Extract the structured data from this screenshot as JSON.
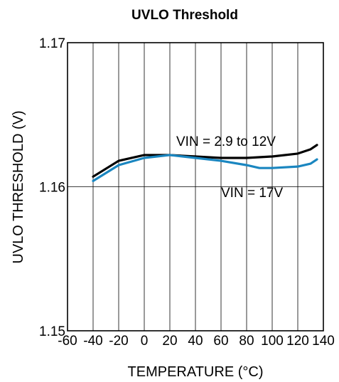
{
  "chart_data": {
    "type": "line",
    "title": "UVLO Threshold",
    "xlabel": "TEMPERATURE (°C)",
    "ylabel": "UVLO THRESHOLD (V)",
    "xlim": [
      -60,
      140
    ],
    "ylim": [
      1.15,
      1.17
    ],
    "x_ticks": [
      -60,
      -40,
      -20,
      0,
      20,
      40,
      60,
      80,
      100,
      120,
      140
    ],
    "x_tick_labels": [
      "-60",
      "-40",
      "-20",
      "0",
      "20",
      "40",
      "60",
      "80",
      "100",
      "120",
      "140"
    ],
    "y_ticks": [
      1.15,
      1.16,
      1.17
    ],
    "y_tick_labels": [
      "1.15",
      "1.16",
      "1.17"
    ],
    "grid": {
      "vertical": true,
      "horizontal_at": [
        1.16
      ]
    },
    "series": [
      {
        "name": "VIN = 2.9 to 12V",
        "color": "#000000",
        "x": [
          -40,
          -20,
          0,
          20,
          40,
          60,
          80,
          100,
          120,
          130,
          135
        ],
        "y": [
          1.1607,
          1.1618,
          1.1622,
          1.1622,
          1.1621,
          1.162,
          1.162,
          1.1621,
          1.1623,
          1.1626,
          1.1629
        ]
      },
      {
        "name": "VIN = 17V",
        "color": "#1a86c0",
        "x": [
          -40,
          -20,
          0,
          20,
          40,
          60,
          80,
          90,
          100,
          120,
          130,
          135
        ],
        "y": [
          1.1604,
          1.1615,
          1.162,
          1.1622,
          1.162,
          1.1618,
          1.1615,
          1.1613,
          1.1613,
          1.1614,
          1.1616,
          1.1619
        ]
      }
    ],
    "annotations": [
      {
        "text": "VIN = 2.9 to 12V",
        "series": 0
      },
      {
        "text": "VIN = 17V",
        "series": 1
      }
    ]
  }
}
